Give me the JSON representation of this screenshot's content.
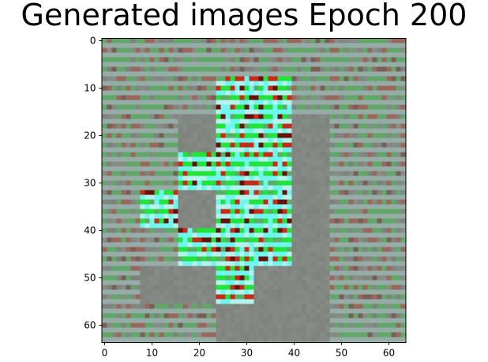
{
  "chart_data": {
    "type": "heatmap",
    "title": "Generated images Epoch 200",
    "xlabel": "",
    "ylabel": "",
    "xlim": [
      -0.5,
      63.5
    ],
    "ylim": [
      63.5,
      -0.5
    ],
    "x_ticks": [
      0,
      10,
      20,
      30,
      40,
      50,
      60
    ],
    "y_ticks": [
      0,
      10,
      20,
      30,
      40,
      50,
      60
    ],
    "grid": false,
    "image_size": [
      64,
      64
    ],
    "block_size": 8,
    "block_grid": [
      [
        0,
        0,
        0,
        0,
        0,
        0,
        0,
        0
      ],
      [
        0,
        0,
        0,
        2,
        2,
        0,
        0,
        0
      ],
      [
        0,
        0,
        1,
        2,
        2,
        1,
        0,
        0
      ],
      [
        0,
        0,
        2,
        2,
        2,
        1,
        0,
        0
      ],
      [
        0,
        2,
        1,
        2,
        2,
        1,
        0,
        0
      ],
      [
        0,
        0,
        2,
        2,
        2,
        1,
        0,
        0
      ],
      [
        0,
        1,
        1,
        2,
        1,
        1,
        0,
        0
      ],
      [
        0,
        0,
        0,
        1,
        1,
        1,
        0,
        0
      ]
    ],
    "block_legend": [
      "faint pattern",
      "plain gray",
      "vivid pattern"
    ],
    "colors": {
      "base_gray": "#838781",
      "green": "#21e33a",
      "red": "#c62b18",
      "dark_red": "#651008",
      "cyan": "#6ff6ee",
      "pale_cyan": "#b6f2ee"
    }
  }
}
